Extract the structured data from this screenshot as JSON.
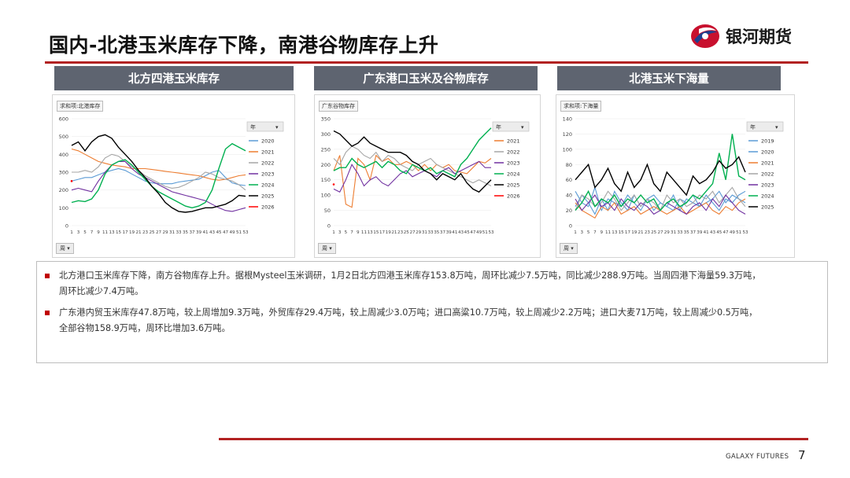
{
  "header": {
    "title": "国内-北港玉米库存下降，南港谷物库存上升",
    "brand": "银河期货"
  },
  "footer": {
    "brand_en": "GALAXY FUTURES",
    "page_number": "7"
  },
  "colors": {
    "accent": "#b22222",
    "header_bg": "#5e6470",
    "bullet": "#c00000",
    "y2019": "#5b9bd5",
    "y2020": "#5b9bd5",
    "y2021": "#ed7d31",
    "y2022": "#a5a5a5",
    "y2023": "#7030a0",
    "y2024": "#00b050",
    "y2025": "#000000",
    "y2026": "#ff0000"
  },
  "chart_data": [
    {
      "type": "line",
      "title": "北方四港玉米库存",
      "pivot_label": "求和项:北港库存",
      "legend_title": "年",
      "x_filter": "周",
      "x": [
        1,
        3,
        5,
        7,
        9,
        11,
        13,
        15,
        17,
        19,
        21,
        23,
        25,
        27,
        29,
        31,
        33,
        35,
        37,
        39,
        41,
        43,
        45,
        47,
        49,
        51,
        53
      ],
      "x_tick_labels": [
        "1",
        "3",
        "5",
        "7",
        "9",
        "11",
        "13",
        "15",
        "17",
        "19",
        "21",
        "23",
        "25",
        "27",
        "29",
        "31",
        "33",
        "35",
        "37",
        "39",
        "41",
        "43",
        "45",
        "47",
        "49",
        "51",
        "53"
      ],
      "ylim": [
        0,
        600
      ],
      "y_ticks": [
        0,
        100,
        200,
        300,
        400,
        500,
        600
      ],
      "series": [
        {
          "name": "2020",
          "values": [
            250,
            260,
            270,
            270,
            285,
            300,
            310,
            320,
            310,
            290,
            270,
            250,
            240,
            235,
            235,
            235,
            245,
            250,
            255,
            260,
            280,
            300,
            310,
            270,
            240,
            230,
            225
          ]
        },
        {
          "name": "2021",
          "values": [
            430,
            420,
            400,
            380,
            360,
            350,
            340,
            335,
            330,
            320,
            320,
            320,
            315,
            310,
            305,
            300,
            295,
            290,
            285,
            280,
            270,
            260,
            255,
            260,
            270,
            280,
            285
          ]
        },
        {
          "name": "2022",
          "values": [
            300,
            300,
            310,
            300,
            330,
            380,
            400,
            390,
            360,
            330,
            310,
            280,
            260,
            240,
            220,
            210,
            215,
            230,
            250,
            270,
            300,
            290,
            270,
            260,
            250,
            230,
            200
          ]
        },
        {
          "name": "2023",
          "values": [
            200,
            210,
            200,
            190,
            250,
            300,
            340,
            360,
            360,
            320,
            290,
            270,
            250,
            230,
            210,
            190,
            180,
            170,
            160,
            150,
            140,
            120,
            100,
            85,
            80,
            90,
            100
          ]
        },
        {
          "name": "2024",
          "values": [
            130,
            140,
            135,
            150,
            200,
            290,
            340,
            360,
            370,
            340,
            300,
            260,
            220,
            190,
            170,
            150,
            130,
            110,
            100,
            110,
            130,
            200,
            320,
            430,
            460,
            440,
            420
          ]
        },
        {
          "name": "2025",
          "values": [
            450,
            470,
            420,
            470,
            500,
            510,
            490,
            440,
            400,
            360,
            310,
            270,
            220,
            180,
            130,
            100,
            80,
            75,
            80,
            90,
            100,
            100,
            110,
            120,
            140,
            170,
            165
          ]
        },
        {
          "name": "2026",
          "values": [
            250,
            null,
            null,
            null,
            null,
            null,
            null,
            null,
            null,
            null,
            null,
            null,
            null,
            null,
            null,
            null,
            null,
            null,
            null,
            null,
            null,
            null,
            null,
            null,
            null,
            null,
            null
          ]
        }
      ]
    },
    {
      "type": "line",
      "title": "广东港口玉米及谷物库存",
      "pivot_label": "广东谷物库存",
      "legend_title": "年",
      "x_filter": "周",
      "x": [
        1,
        3,
        5,
        7,
        9,
        11,
        13,
        15,
        17,
        19,
        21,
        23,
        25,
        27,
        29,
        31,
        33,
        35,
        37,
        39,
        41,
        43,
        45,
        47,
        49,
        51,
        53
      ],
      "x_tick_labels": [
        "1",
        "3",
        "5",
        "7",
        "9",
        "11",
        "13",
        "15",
        "17",
        "19",
        "21",
        "23",
        "25",
        "27",
        "29",
        "31",
        "33",
        "35",
        "37",
        "39",
        "41",
        "43",
        "45",
        "47",
        "49",
        "51",
        "53"
      ],
      "ylim": [
        0,
        350
      ],
      "y_ticks": [
        0,
        50,
        100,
        150,
        200,
        250,
        300,
        350
      ],
      "series": [
        {
          "name": "2021",
          "values": [
            180,
            230,
            70,
            60,
            220,
            200,
            150,
            230,
            210,
            220,
            200,
            200,
            210,
            200,
            180,
            200,
            180,
            200,
            190,
            200,
            180,
            175,
            170,
            190,
            210,
            205,
            220
          ]
        },
        {
          "name": "2022",
          "values": [
            220,
            200,
            240,
            260,
            250,
            230,
            220,
            240,
            210,
            230,
            220,
            200,
            190,
            180,
            200,
            210,
            220,
            200,
            190,
            180,
            170,
            160,
            150,
            140,
            150,
            140,
            130
          ]
        },
        {
          "name": "2023",
          "values": [
            120,
            110,
            150,
            200,
            170,
            130,
            150,
            160,
            140,
            130,
            150,
            170,
            180,
            160,
            170,
            180,
            170,
            160,
            180,
            190,
            170,
            180,
            190,
            200,
            210,
            190,
            190
          ]
        },
        {
          "name": "2024",
          "values": [
            180,
            190,
            190,
            220,
            200,
            190,
            200,
            210,
            190,
            210,
            200,
            180,
            170,
            200,
            190,
            180,
            190,
            170,
            180,
            170,
            160,
            200,
            220,
            250,
            280,
            300,
            320
          ]
        },
        {
          "name": "2025",
          "values": [
            310,
            300,
            280,
            260,
            270,
            290,
            270,
            260,
            250,
            240,
            240,
            240,
            230,
            210,
            200,
            180,
            170,
            150,
            170,
            160,
            150,
            170,
            140,
            120,
            110,
            130,
            150
          ]
        },
        {
          "name": "2026",
          "values": [
            135,
            null,
            null,
            null,
            null,
            null,
            null,
            null,
            null,
            null,
            null,
            null,
            null,
            null,
            null,
            null,
            null,
            null,
            null,
            null,
            null,
            null,
            null,
            null,
            null,
            null,
            null
          ]
        }
      ]
    },
    {
      "type": "line",
      "title": "北港玉米下海量",
      "pivot_label": "求和项:下海量",
      "legend_title": "年",
      "x_filter": "周",
      "x": [
        1,
        3,
        5,
        7,
        9,
        11,
        13,
        15,
        17,
        19,
        21,
        23,
        25,
        27,
        29,
        31,
        33,
        35,
        37,
        39,
        41,
        43,
        45,
        47,
        49,
        51,
        53
      ],
      "x_tick_labels": [
        "1",
        "3",
        "5",
        "7",
        "9",
        "11",
        "13",
        "15",
        "17",
        "19",
        "21",
        "23",
        "25",
        "27",
        "29",
        "31",
        "33",
        "35",
        "37",
        "39",
        "41",
        "43",
        "45",
        "47",
        "49",
        "51",
        "53"
      ],
      "ylim": [
        0,
        140
      ],
      "y_ticks": [
        0,
        20,
        40,
        60,
        80,
        100,
        120,
        140
      ],
      "series": [
        {
          "name": "2019",
          "values": [
            25,
            40,
            30,
            15,
            35,
            20,
            45,
            30,
            20,
            40,
            25,
            35,
            20,
            30,
            25,
            40,
            20,
            35,
            30,
            25,
            40,
            30,
            20,
            35,
            30,
            40,
            45
          ]
        },
        {
          "name": "2020",
          "values": [
            45,
            30,
            25,
            50,
            20,
            35,
            30,
            25,
            40,
            30,
            20,
            35,
            40,
            30,
            25,
            20,
            35,
            30,
            40,
            25,
            30,
            35,
            45,
            30,
            40,
            35,
            30
          ]
        },
        {
          "name": "2021",
          "values": [
            30,
            20,
            15,
            10,
            25,
            20,
            30,
            15,
            20,
            25,
            15,
            20,
            25,
            20,
            15,
            20,
            25,
            15,
            20,
            25,
            30,
            20,
            15,
            25,
            20,
            30,
            35
          ]
        },
        {
          "name": "2022",
          "values": [
            20,
            40,
            35,
            25,
            30,
            45,
            35,
            20,
            30,
            40,
            25,
            35,
            30,
            20,
            40,
            30,
            35,
            25,
            30,
            40,
            35,
            45,
            30,
            40,
            50,
            35,
            25
          ]
        },
        {
          "name": "2023",
          "values": [
            35,
            20,
            30,
            40,
            25,
            30,
            20,
            35,
            25,
            20,
            30,
            25,
            15,
            20,
            30,
            25,
            20,
            15,
            25,
            30,
            20,
            35,
            25,
            40,
            30,
            20,
            15
          ]
        },
        {
          "name": "2024",
          "values": [
            20,
            30,
            45,
            25,
            35,
            30,
            40,
            25,
            35,
            30,
            40,
            30,
            35,
            20,
            30,
            35,
            25,
            30,
            40,
            35,
            45,
            55,
            95,
            60,
            120,
            65,
            60
          ]
        },
        {
          "name": "2025",
          "values": [
            60,
            70,
            80,
            50,
            60,
            75,
            55,
            45,
            70,
            50,
            60,
            80,
            55,
            45,
            70,
            60,
            50,
            40,
            65,
            55,
            60,
            70,
            85,
            75,
            80,
            90,
            70
          ]
        }
      ]
    }
  ],
  "notes": [
    {
      "lines": [
        "北方港口玉米库存下降，南方谷物库存上升。据根Mysteel玉米调研，1月2日北方四港玉米库存153.8万吨，周环比减少7.5万吨，同比减少288.9万吨。当周四港下海量59.3万吨，",
        "周环比减少7.4万吨。"
      ]
    },
    {
      "lines": [
        "广东港内贸玉米库存47.8万吨，较上周增加9.3万吨，外贸库存29.4万吨，较上周减少3.0万吨；进口高粱10.7万吨，较上周减少2.2万吨；进口大麦71万吨，较上周减少0.5万吨，",
        "全部谷物158.9万吨，周环比增加3.6万吨。"
      ]
    }
  ]
}
